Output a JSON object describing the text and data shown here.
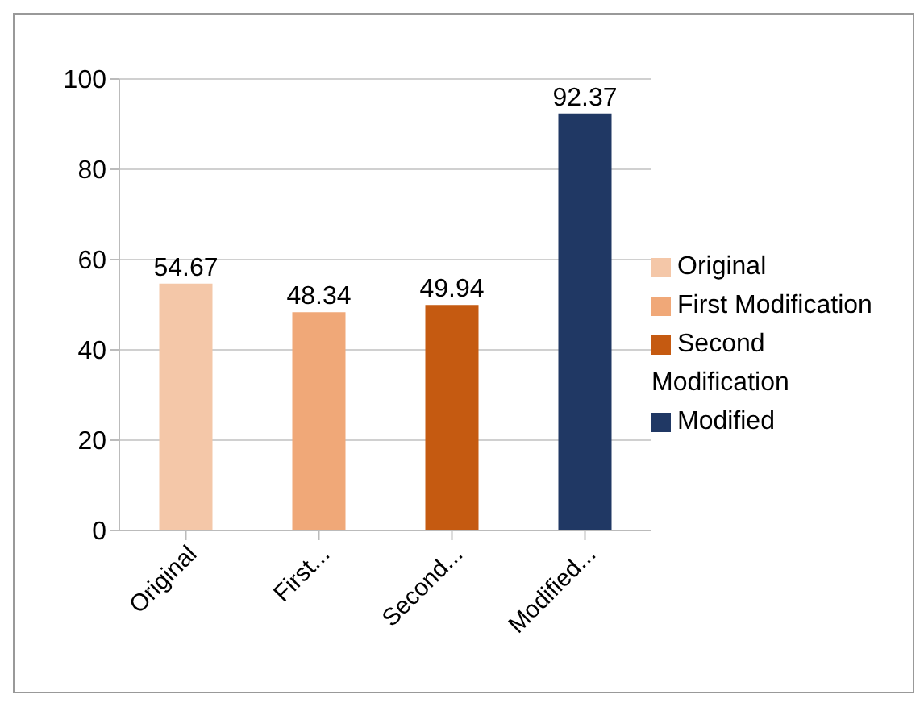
{
  "chart_data": {
    "type": "bar",
    "categories": [
      "Original",
      "First...",
      "Second...",
      "Modified..."
    ],
    "series": [
      {
        "name": "Original",
        "color": "#f4c7a8",
        "values": [
          54.67,
          null,
          null,
          null
        ]
      },
      {
        "name": "First Modification",
        "color": "#f0a878",
        "values": [
          null,
          48.34,
          null,
          null
        ]
      },
      {
        "name": "Second Modification",
        "color": "#c55a11",
        "values": [
          null,
          null,
          49.94,
          null
        ]
      },
      {
        "name": "Modified",
        "color": "#203864",
        "values": [
          null,
          null,
          null,
          92.37
        ]
      }
    ],
    "stacked": true,
    "ylim": [
      0,
      100
    ],
    "yticks": [
      0,
      20,
      40,
      60,
      80,
      100
    ],
    "grid": "y",
    "legend": "right",
    "data_labels": true
  }
}
